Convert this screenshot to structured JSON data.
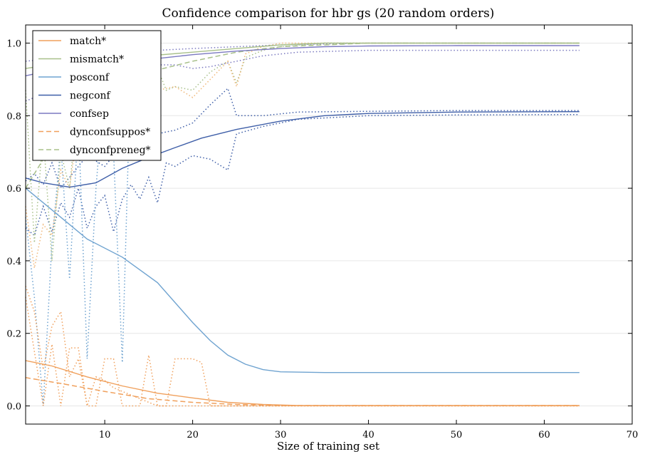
{
  "chart_data": {
    "type": "line",
    "title": "Confidence comparison for hbr gs (20 random orders)",
    "xlabel": "Size of training set",
    "ylabel": "",
    "xlim": [
      1,
      70
    ],
    "ylim": [
      -0.05,
      1.05
    ],
    "x_ticks": [
      10,
      20,
      30,
      40,
      50,
      60,
      70
    ],
    "y_ticks": [
      0.0,
      0.2,
      0.4,
      0.6,
      0.8,
      1.0
    ],
    "y_tick_labels": [
      "0.0",
      "0.2",
      "0.4",
      "0.6",
      "0.8",
      "1.0"
    ],
    "grid": "horizontal",
    "legend_position": "top-left",
    "colors": {
      "match": "#f0a05c",
      "mismatch": "#a8c08a",
      "posconf": "#6fa3d0",
      "negconf": "#3f5fa8",
      "confsep": "#7b79c0",
      "dyn_pos": "#f0a05c",
      "dyn_neg": "#a8c08a"
    },
    "series": [
      {
        "name": "match*",
        "color": "#f0a05c",
        "style": "solid",
        "x": [
          1,
          4,
          8,
          12,
          16,
          20,
          24,
          28,
          32,
          40,
          50,
          64
        ],
        "y": [
          0.125,
          0.11,
          0.08,
          0.055,
          0.035,
          0.022,
          0.01,
          0.004,
          0.001,
          0.001,
          0.001,
          0.001
        ]
      },
      {
        "name": "mismatch*",
        "color": "#a8c08a",
        "style": "solid",
        "x": [
          1,
          5,
          10,
          15,
          20,
          25,
          30,
          35,
          40,
          50,
          64
        ],
        "y": [
          0.93,
          0.945,
          0.955,
          0.965,
          0.975,
          0.985,
          0.995,
          1.0,
          1.0,
          1.0,
          1.0
        ]
      },
      {
        "name": "posconf",
        "color": "#6fa3d0",
        "style": "solid",
        "x": [
          1,
          4,
          8,
          12,
          16,
          20,
          22,
          24,
          26,
          28,
          30,
          35,
          40,
          50,
          64
        ],
        "y": [
          0.6,
          0.54,
          0.46,
          0.41,
          0.34,
          0.23,
          0.18,
          0.14,
          0.115,
          0.1,
          0.094,
          0.092,
          0.092,
          0.092,
          0.092
        ]
      },
      {
        "name": "negconf",
        "color": "#3f5fa8",
        "style": "solid",
        "x": [
          1,
          3,
          6,
          9,
          12,
          15,
          18,
          21,
          25,
          30,
          35,
          40,
          50,
          64
        ],
        "y": [
          0.628,
          0.615,
          0.603,
          0.615,
          0.655,
          0.685,
          0.712,
          0.738,
          0.762,
          0.785,
          0.8,
          0.806,
          0.81,
          0.811
        ]
      },
      {
        "name": "confsep",
        "color": "#7b79c0",
        "style": "solid",
        "x": [
          1,
          5,
          10,
          15,
          20,
          25,
          30,
          35,
          40,
          50,
          64
        ],
        "y": [
          0.91,
          0.93,
          0.945,
          0.955,
          0.968,
          0.978,
          0.985,
          0.99,
          0.992,
          0.993,
          0.993
        ]
      },
      {
        "name": "dynconfsuppos*",
        "color": "#f0a05c",
        "style": "dashed",
        "x": [
          1,
          5,
          10,
          15,
          20,
          25,
          30,
          40,
          64
        ],
        "y": [
          0.078,
          0.062,
          0.04,
          0.02,
          0.01,
          0.004,
          0.001,
          0.001,
          0.001
        ]
      },
      {
        "name": "dynconfpreneg*",
        "color": "#a8c08a",
        "style": "dashed",
        "x": [
          1,
          3,
          6,
          10,
          15,
          20,
          25,
          30,
          40,
          64
        ],
        "y": [
          0.6,
          0.68,
          0.78,
          0.87,
          0.92,
          0.95,
          0.975,
          0.99,
          1.0,
          1.0
        ]
      },
      {
        "name": "",
        "color": "#3f5fa8",
        "style": "dotted",
        "x": [
          1,
          2,
          3,
          4,
          5,
          6,
          7,
          8,
          9,
          10,
          11,
          12,
          13,
          14,
          15,
          16,
          17,
          18,
          20,
          22,
          24,
          25,
          28,
          32,
          40,
          50,
          64
        ],
        "y": [
          0.49,
          0.47,
          0.55,
          0.48,
          0.56,
          0.52,
          0.6,
          0.49,
          0.55,
          0.58,
          0.48,
          0.57,
          0.61,
          0.57,
          0.63,
          0.56,
          0.67,
          0.66,
          0.69,
          0.68,
          0.65,
          0.75,
          0.77,
          0.79,
          0.8,
          0.802,
          0.803
        ]
      },
      {
        "name": "",
        "color": "#3f5fa8",
        "style": "dotted",
        "x": [
          1,
          2,
          3,
          4,
          5,
          6,
          8,
          10,
          12,
          14,
          16,
          18,
          20,
          22,
          24,
          25,
          28,
          32,
          40,
          50,
          64
        ],
        "y": [
          0.62,
          0.64,
          0.61,
          0.67,
          0.6,
          0.63,
          0.69,
          0.66,
          0.72,
          0.7,
          0.75,
          0.76,
          0.78,
          0.83,
          0.875,
          0.8,
          0.8,
          0.81,
          0.812,
          0.814,
          0.814
        ]
      },
      {
        "name": "",
        "color": "#6fa3d0",
        "style": "dotted",
        "x": [
          1,
          2,
          3,
          4,
          5,
          6,
          7,
          8,
          9,
          10,
          11,
          12,
          13
        ],
        "y": [
          0.52,
          0.3,
          0.0,
          0.45,
          0.72,
          0.35,
          0.78,
          0.13,
          0.6,
          0.9,
          0.7,
          0.12,
          0.97
        ]
      },
      {
        "name": "",
        "color": "#f0a05c",
        "style": "dotted",
        "x": [
          1,
          2,
          3,
          4,
          5,
          6,
          7,
          8,
          9,
          10,
          11,
          12,
          13,
          14,
          15,
          16,
          17,
          18,
          20,
          21,
          22,
          24,
          30,
          64
        ],
        "y": [
          0.3,
          0.15,
          0.0,
          0.17,
          0.0,
          0.16,
          0.16,
          0.0,
          0.0,
          0.13,
          0.13,
          0.0,
          0.0,
          0.0,
          0.14,
          0.0,
          0.0,
          0.13,
          0.13,
          0.12,
          0.0,
          0.0,
          0.0,
          0.0
        ]
      },
      {
        "name": "",
        "color": "#f0a05c",
        "style": "dotted",
        "x": [
          1,
          2,
          3,
          4,
          5,
          6,
          7,
          8,
          9,
          10,
          11,
          12,
          14,
          16,
          18,
          20,
          30,
          64
        ],
        "y": [
          0.33,
          0.26,
          0.1,
          0.22,
          0.26,
          0.08,
          0.13,
          0.0,
          0.08,
          0.07,
          0.05,
          0.04,
          0.02,
          0.0,
          0.0,
          0.0,
          0.0,
          0.0
        ]
      },
      {
        "name": "",
        "color": "#a8c08a",
        "style": "dotted",
        "x": [
          1,
          2,
          3,
          4,
          5,
          6,
          7,
          8,
          9,
          10,
          11,
          12,
          13,
          14,
          15,
          16,
          17,
          18,
          20,
          22,
          24,
          25,
          26,
          28,
          30,
          35,
          40,
          64
        ],
        "y": [
          0.87,
          0.45,
          0.75,
          0.4,
          0.7,
          0.6,
          0.85,
          0.8,
          0.88,
          0.93,
          0.9,
          0.95,
          0.98,
          0.96,
          0.9,
          0.93,
          0.87,
          0.88,
          0.87,
          0.92,
          0.95,
          0.89,
          0.96,
          0.98,
          0.99,
          1.0,
          1.0,
          1.0
        ]
      },
      {
        "name": "",
        "color": "#f0b87a",
        "style": "dotted",
        "x": [
          1,
          2,
          3,
          4,
          5,
          6,
          7,
          8,
          9,
          10,
          12,
          14,
          16,
          18,
          20,
          22,
          24,
          25,
          26,
          28,
          30,
          35,
          40,
          64
        ],
        "y": [
          0.55,
          0.38,
          0.5,
          0.47,
          0.65,
          0.6,
          0.78,
          0.84,
          0.8,
          0.88,
          0.9,
          0.93,
          0.87,
          0.88,
          0.85,
          0.9,
          0.95,
          0.88,
          0.97,
          0.99,
          1.0,
          1.0,
          1.0,
          1.0
        ]
      },
      {
        "name": "",
        "color": "#7b79c0",
        "style": "dotted",
        "x": [
          1,
          3,
          5,
          8,
          10,
          13,
          16,
          18,
          20,
          22,
          25,
          28,
          32,
          40,
          50,
          64
        ],
        "y": [
          0.84,
          0.86,
          0.88,
          0.9,
          0.92,
          0.93,
          0.94,
          0.94,
          0.93,
          0.935,
          0.95,
          0.965,
          0.975,
          0.98,
          0.98,
          0.98
        ]
      },
      {
        "name": "",
        "color": "#7b79c0",
        "style": "dotted",
        "x": [
          1,
          3,
          5,
          8,
          10,
          13,
          16,
          20,
          25,
          30,
          40,
          64
        ],
        "y": [
          0.95,
          0.955,
          0.96,
          0.965,
          0.97,
          0.975,
          0.98,
          0.985,
          0.99,
          0.995,
          1.0,
          1.0
        ]
      }
    ]
  }
}
